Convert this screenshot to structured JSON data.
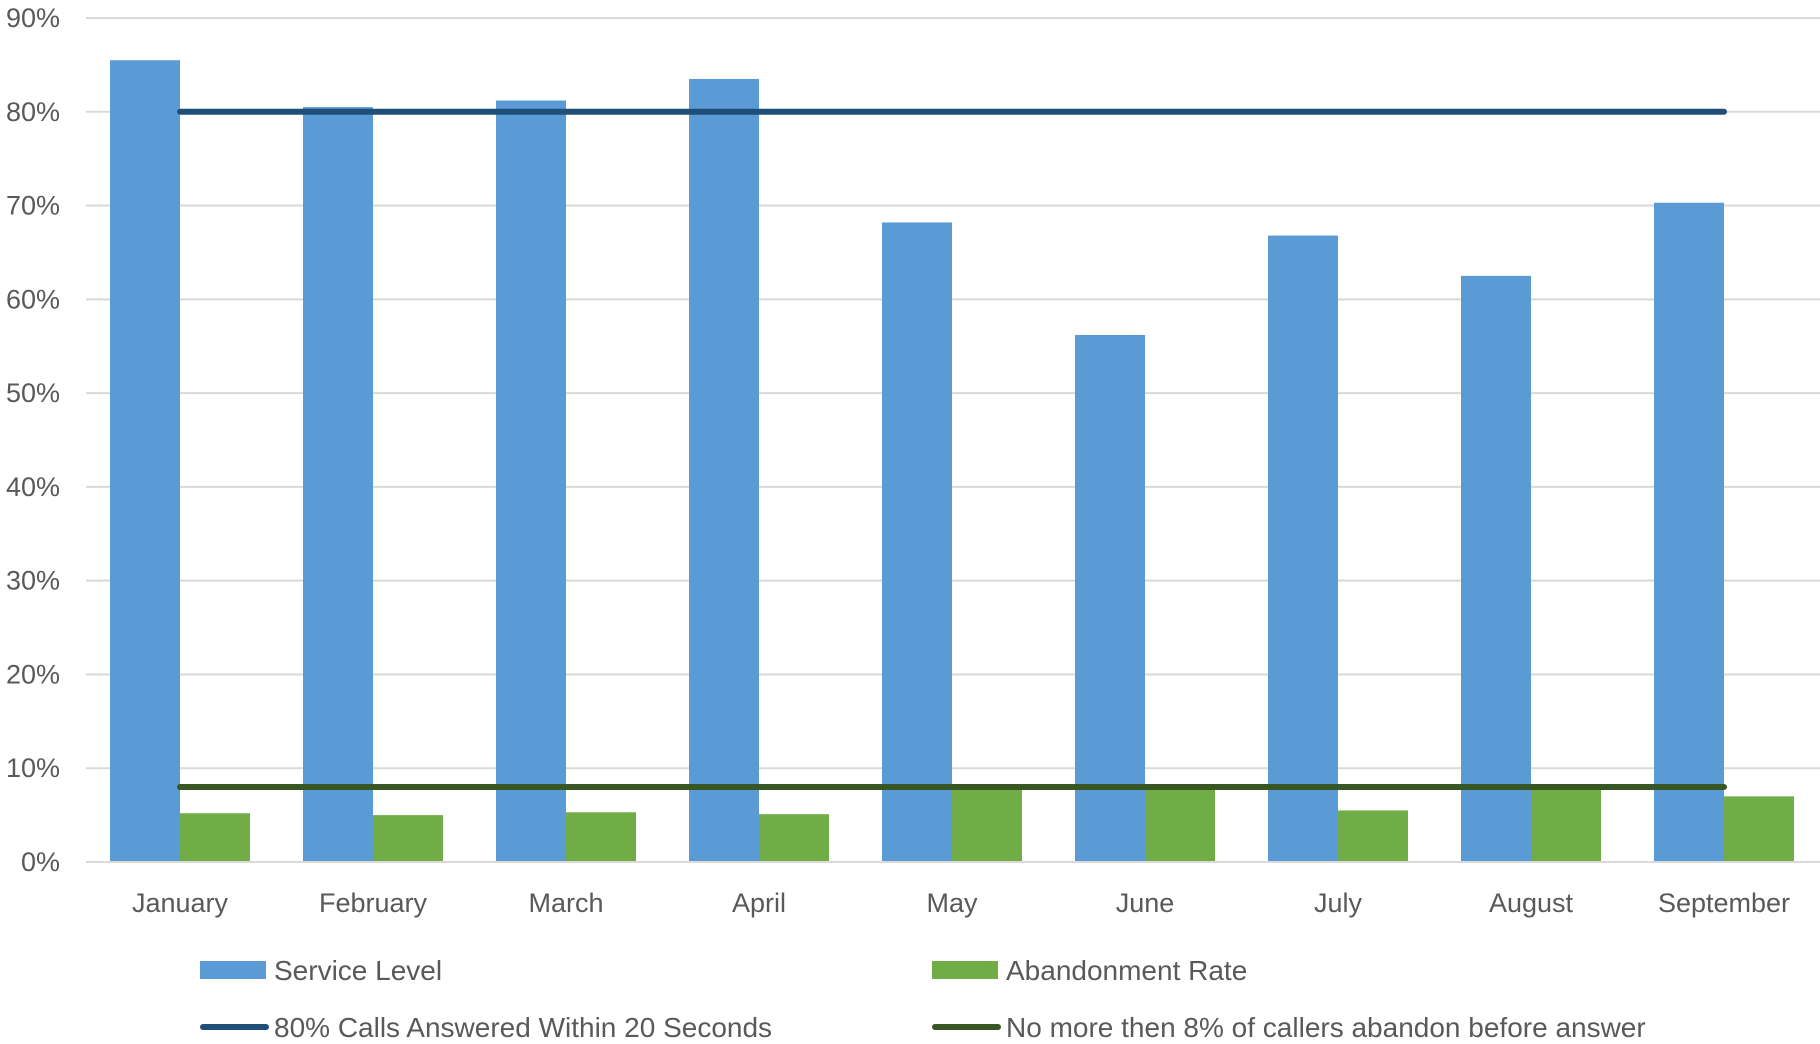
{
  "chart_data": {
    "type": "bar",
    "categories": [
      "January",
      "February",
      "March",
      "April",
      "May",
      "June",
      "July",
      "August",
      "September"
    ],
    "series": [
      {
        "name": "Service Level",
        "kind": "bar",
        "color": "#5B9BD5",
        "values": [
          85.5,
          80.5,
          81.2,
          83.5,
          68.2,
          56.2,
          66.8,
          62.5,
          70.3
        ]
      },
      {
        "name": "Abandonment Rate",
        "kind": "bar",
        "color": "#70AD47",
        "values": [
          5.2,
          5.0,
          5.3,
          5.1,
          8.0,
          8.0,
          5.5,
          8.0,
          7.0
        ]
      },
      {
        "name": "80% Calls Answered Within 20 Seconds",
        "kind": "line",
        "color": "#1F4E79",
        "values": [
          80,
          80,
          80,
          80,
          80,
          80,
          80,
          80,
          80
        ]
      },
      {
        "name": "No more then 8% of callers abandon before answer",
        "kind": "line",
        "color": "#375623",
        "values": [
          8,
          8,
          8,
          8,
          8,
          8,
          8,
          8,
          8
        ]
      }
    ],
    "ylim": [
      0,
      90
    ],
    "yticks": [
      0,
      10,
      20,
      30,
      40,
      50,
      60,
      70,
      80,
      90
    ],
    "ytick_labels": [
      "0%",
      "10%",
      "20%",
      "30%",
      "40%",
      "50%",
      "60%",
      "70%",
      "80%",
      "90%"
    ],
    "grid": true,
    "legend": "bottom",
    "gridline_color": "#D9D9D9"
  }
}
